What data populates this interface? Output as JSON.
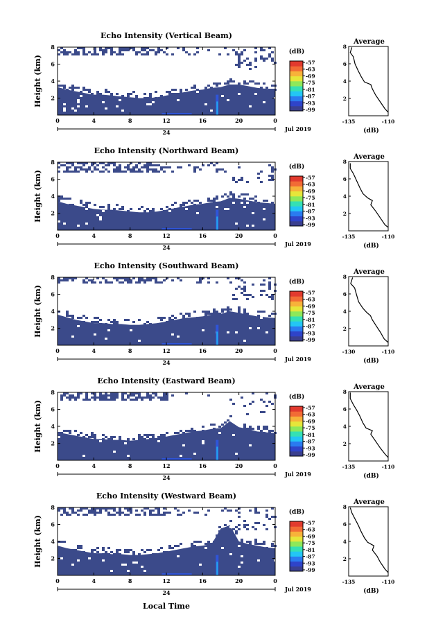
{
  "figure": {
    "xlabel": "Local Time",
    "date_label": "Jul 2019",
    "day_label": "24",
    "colorbar_unit": "(dB)",
    "colorbar_ticks": [
      "-57",
      "-63",
      "-69",
      "-75",
      "-81",
      "-87",
      "-93",
      "-99"
    ],
    "colorbar_colors": [
      "#3a3f8f",
      "#2f44c9",
      "#2a7bf0",
      "#23c6f4",
      "#35e0b4",
      "#8ee85a",
      "#e6e63a",
      "#f7b23a",
      "#f26b35",
      "#e23a2e"
    ],
    "average_title": "Average",
    "average_xlabel": "(dB)",
    "background_color": "#3b4a8a"
  },
  "chart_data": [
    {
      "type": "heatmap",
      "title": "Echo Intensity (Vertical Beam)",
      "ylabel": "Height (km)",
      "xlim": [
        0,
        24
      ],
      "ylim": [
        0,
        8
      ],
      "x_ticks": [
        "0",
        "4",
        "8",
        "12",
        "16",
        "20",
        "0"
      ],
      "y_ticks": [
        "2",
        "4",
        "6",
        "8"
      ],
      "boundary_km": [
        [
          0,
          3.3
        ],
        [
          1,
          3.0
        ],
        [
          2,
          2.8
        ],
        [
          3,
          2.6
        ],
        [
          4,
          2.4
        ],
        [
          5,
          2.4
        ],
        [
          6,
          2.3
        ],
        [
          7,
          2.2
        ],
        [
          8,
          2.1
        ],
        [
          9,
          2.0
        ],
        [
          10,
          2.0
        ],
        [
          11,
          2.1
        ],
        [
          12,
          2.3
        ],
        [
          13,
          2.5
        ],
        [
          14,
          2.7
        ],
        [
          15,
          2.9
        ],
        [
          16,
          3.0
        ],
        [
          17,
          3.2
        ],
        [
          18,
          3.3
        ],
        [
          19,
          3.6
        ],
        [
          20,
          3.6
        ],
        [
          21,
          3.4
        ],
        [
          22,
          3.2
        ],
        [
          23,
          3.1
        ],
        [
          24,
          3.0
        ]
      ],
      "upper_echo_km": 7.2,
      "average": {
        "xlim": [
          -135,
          -110
        ],
        "x_ticks": [
          "-135",
          "-110"
        ],
        "y_ticks": [
          "2",
          "4",
          "6",
          "8"
        ],
        "profile": [
          [
            -133,
            7.9
          ],
          [
            -134,
            7.3
          ],
          [
            -132,
            6.8
          ],
          [
            -131,
            6.0
          ],
          [
            -129,
            5.2
          ],
          [
            -127,
            4.5
          ],
          [
            -125,
            3.9
          ],
          [
            -121,
            3.6
          ],
          [
            -120,
            3.1
          ],
          [
            -118,
            2.4
          ],
          [
            -115,
            1.6
          ],
          [
            -112,
            0.8
          ],
          [
            -110,
            0.4
          ]
        ]
      }
    },
    {
      "type": "heatmap",
      "title": "Echo Intensity (Northward Beam)",
      "ylabel": "Height (km)",
      "xlim": [
        0,
        24
      ],
      "ylim": [
        0,
        8
      ],
      "x_ticks": [
        "0",
        "4",
        "8",
        "12",
        "16",
        "20",
        "0"
      ],
      "y_ticks": [
        "2",
        "4",
        "6",
        "8"
      ],
      "boundary_km": [
        [
          0,
          3.4
        ],
        [
          1,
          3.1
        ],
        [
          2,
          2.9
        ],
        [
          3,
          2.7
        ],
        [
          4,
          2.5
        ],
        [
          5,
          2.4
        ],
        [
          6,
          2.4
        ],
        [
          7,
          2.3
        ],
        [
          8,
          2.2
        ],
        [
          9,
          2.1
        ],
        [
          10,
          2.1
        ],
        [
          11,
          2.2
        ],
        [
          12,
          2.4
        ],
        [
          13,
          2.6
        ],
        [
          14,
          2.8
        ],
        [
          15,
          3.0
        ],
        [
          16,
          3.1
        ],
        [
          17,
          3.3
        ],
        [
          18,
          3.4
        ],
        [
          19,
          3.8
        ],
        [
          20,
          3.7
        ],
        [
          21,
          3.5
        ],
        [
          22,
          3.3
        ],
        [
          23,
          3.2
        ],
        [
          24,
          3.1
        ]
      ],
      "upper_echo_km": 7.0,
      "average": {
        "xlim": [
          -135,
          -110
        ],
        "x_ticks": [
          "-135",
          "-110"
        ],
        "y_ticks": [
          "2",
          "4",
          "6",
          "8"
        ],
        "profile": [
          [
            -134,
            7.8
          ],
          [
            -134,
            7.2
          ],
          [
            -132,
            6.6
          ],
          [
            -130,
            5.8
          ],
          [
            -128,
            5.0
          ],
          [
            -126,
            4.3
          ],
          [
            -123,
            3.8
          ],
          [
            -120,
            3.5
          ],
          [
            -121,
            3.0
          ],
          [
            -118,
            2.3
          ],
          [
            -115,
            1.5
          ],
          [
            -112,
            0.7
          ],
          [
            -110,
            0.4
          ]
        ]
      }
    },
    {
      "type": "heatmap",
      "title": "Echo Intensity (Southward Beam)",
      "ylabel": "Height (km)",
      "xlim": [
        0,
        24
      ],
      "ylim": [
        0,
        8
      ],
      "x_ticks": [
        "0",
        "4",
        "8",
        "12",
        "16",
        "20",
        "0"
      ],
      "y_ticks": [
        "2",
        "4",
        "6",
        "8"
      ],
      "boundary_km": [
        [
          0,
          3.6
        ],
        [
          1,
          3.3
        ],
        [
          2,
          3.0
        ],
        [
          3,
          2.8
        ],
        [
          4,
          2.6
        ],
        [
          5,
          2.6
        ],
        [
          6,
          2.5
        ],
        [
          7,
          2.5
        ],
        [
          8,
          2.4
        ],
        [
          9,
          2.4
        ],
        [
          10,
          2.5
        ],
        [
          11,
          2.6
        ],
        [
          12,
          2.8
        ],
        [
          13,
          3.0
        ],
        [
          14,
          3.2
        ],
        [
          15,
          3.3
        ],
        [
          16,
          3.4
        ],
        [
          17,
          3.6
        ],
        [
          18,
          3.7
        ],
        [
          19,
          4.0
        ],
        [
          20,
          3.8
        ],
        [
          21,
          3.6
        ],
        [
          22,
          3.4
        ],
        [
          23,
          3.3
        ],
        [
          24,
          3.2
        ]
      ],
      "upper_echo_km": 7.3,
      "average": {
        "xlim": [
          -130,
          -110
        ],
        "x_ticks": [
          "-130",
          "-110"
        ],
        "y_ticks": [
          "2",
          "4",
          "6",
          "8"
        ],
        "profile": [
          [
            -128,
            7.9
          ],
          [
            -129,
            7.2
          ],
          [
            -127,
            6.7
          ],
          [
            -126,
            5.9
          ],
          [
            -125,
            5.1
          ],
          [
            -123,
            4.4
          ],
          [
            -121,
            3.9
          ],
          [
            -119,
            3.5
          ],
          [
            -118,
            3.0
          ],
          [
            -116,
            2.3
          ],
          [
            -114,
            1.6
          ],
          [
            -112,
            0.8
          ],
          [
            -110,
            0.4
          ]
        ]
      }
    },
    {
      "type": "heatmap",
      "title": "Echo Intensity (Eastward Beam)",
      "ylabel": "Height (km)",
      "xlim": [
        0,
        24
      ],
      "ylim": [
        0,
        8
      ],
      "x_ticks": [
        "0",
        "4",
        "8",
        "12",
        "16",
        "20",
        "0"
      ],
      "y_ticks": [
        "2",
        "4",
        "6",
        "8"
      ],
      "boundary_km": [
        [
          0,
          3.3
        ],
        [
          1,
          3.1
        ],
        [
          2,
          2.9
        ],
        [
          3,
          2.7
        ],
        [
          4,
          2.5
        ],
        [
          5,
          2.5
        ],
        [
          6,
          2.4
        ],
        [
          7,
          2.4
        ],
        [
          8,
          2.3
        ],
        [
          9,
          2.4
        ],
        [
          10,
          2.5
        ],
        [
          11,
          2.6
        ],
        [
          12,
          2.8
        ],
        [
          13,
          3.0
        ],
        [
          14,
          3.2
        ],
        [
          15,
          3.4
        ],
        [
          16,
          3.5
        ],
        [
          17,
          3.7
        ],
        [
          18,
          3.8
        ],
        [
          19,
          4.6
        ],
        [
          20,
          3.9
        ],
        [
          21,
          3.7
        ],
        [
          22,
          3.4
        ],
        [
          23,
          3.3
        ],
        [
          24,
          3.2
        ]
      ],
      "upper_echo_km": 7.1,
      "average": {
        "xlim": [
          -135,
          -110
        ],
        "x_ticks": [
          "-135",
          "-110"
        ],
        "y_ticks": [
          "2",
          "4",
          "6",
          "8"
        ],
        "profile": [
          [
            -134,
            7.9
          ],
          [
            -134,
            7.2
          ],
          [
            -132,
            6.5
          ],
          [
            -130,
            5.9
          ],
          [
            -128,
            5.2
          ],
          [
            -126,
            4.4
          ],
          [
            -124,
            3.8
          ],
          [
            -120,
            3.5
          ],
          [
            -121,
            3.1
          ],
          [
            -118,
            2.3
          ],
          [
            -115,
            1.5
          ],
          [
            -112,
            0.8
          ],
          [
            -110,
            0.4
          ]
        ]
      }
    },
    {
      "type": "heatmap",
      "title": "Echo Intensity (Westward Beam)",
      "ylabel": "Height (km)",
      "xlim": [
        0,
        24
      ],
      "ylim": [
        0,
        8
      ],
      "x_ticks": [
        "0",
        "4",
        "8",
        "12",
        "16",
        "20",
        "0"
      ],
      "y_ticks": [
        "2",
        "4",
        "6",
        "8"
      ],
      "boundary_km": [
        [
          0,
          3.5
        ],
        [
          1,
          3.2
        ],
        [
          2,
          3.0
        ],
        [
          3,
          2.8
        ],
        [
          4,
          2.6
        ],
        [
          5,
          2.6
        ],
        [
          6,
          2.5
        ],
        [
          7,
          2.5
        ],
        [
          8,
          2.4
        ],
        [
          9,
          2.4
        ],
        [
          10,
          2.5
        ],
        [
          11,
          2.6
        ],
        [
          12,
          2.8
        ],
        [
          13,
          3.0
        ],
        [
          14,
          3.2
        ],
        [
          15,
          3.4
        ],
        [
          16,
          3.5
        ],
        [
          17,
          3.7
        ],
        [
          18,
          5.5
        ],
        [
          19,
          5.9
        ],
        [
          20,
          4.0
        ],
        [
          21,
          3.7
        ],
        [
          22,
          3.5
        ],
        [
          23,
          3.3
        ],
        [
          24,
          3.2
        ]
      ],
      "upper_echo_km": 7.2,
      "average": {
        "xlim": [
          -135,
          -110
        ],
        "x_ticks": [
          "-135",
          "-110"
        ],
        "y_ticks": [
          "2",
          "4",
          "6",
          "8"
        ],
        "profile": [
          [
            -134,
            7.9
          ],
          [
            -133,
            7.3
          ],
          [
            -131,
            6.6
          ],
          [
            -129,
            5.9
          ],
          [
            -127,
            5.1
          ],
          [
            -125,
            4.4
          ],
          [
            -123,
            3.9
          ],
          [
            -119,
            3.5
          ],
          [
            -120,
            3.0
          ],
          [
            -117,
            2.3
          ],
          [
            -115,
            1.6
          ],
          [
            -112,
            0.8
          ],
          [
            -110,
            0.4
          ]
        ]
      }
    }
  ]
}
